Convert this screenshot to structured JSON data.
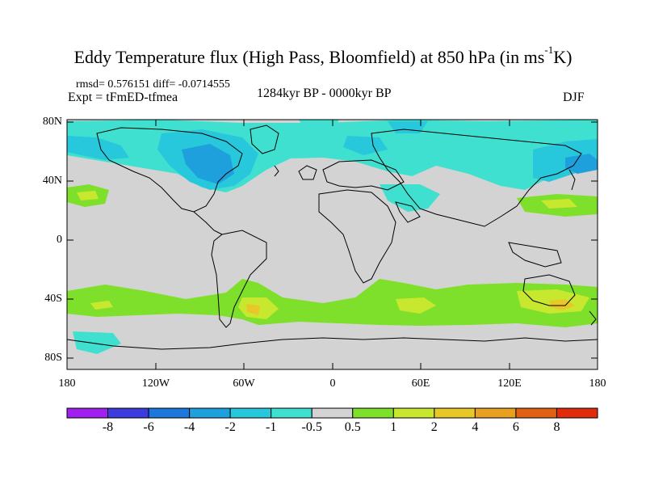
{
  "title_main": "Eddy Temperature flux (High Pass, Bloomfield) at 850 hPa (in ms",
  "title_sup": "-1",
  "title_end": "K)",
  "stats": "rmsd= 0.576151 diff= -0.0714555",
  "expt": "Expt = tFmED-tfmea",
  "period": "1284kyr BP - 0000kyr BP",
  "season": "DJF",
  "lat_labels": [
    "80N",
    "40N",
    "0",
    "40S",
    "80S"
  ],
  "lon_labels": [
    "180",
    "120W",
    "60W",
    "0",
    "60E",
    "120E",
    "180"
  ],
  "colorbar": {
    "labels": [
      "-8",
      "-6",
      "-4",
      "-2",
      "-1",
      "-0.5",
      "0.5",
      "1",
      "2",
      "4",
      "6",
      "8"
    ],
    "colors": [
      "#a020f0",
      "#3c3cdc",
      "#1e78dc",
      "#1ea0dc",
      "#28c8dc",
      "#40e0d0",
      "#d3d3d3",
      "#7ee02a",
      "#c8e830",
      "#e8c828",
      "#e8a020",
      "#e06014",
      "#e02c0c"
    ]
  },
  "map_colors": {
    "neutral": "#d3d3d3",
    "coast": "#000000"
  }
}
